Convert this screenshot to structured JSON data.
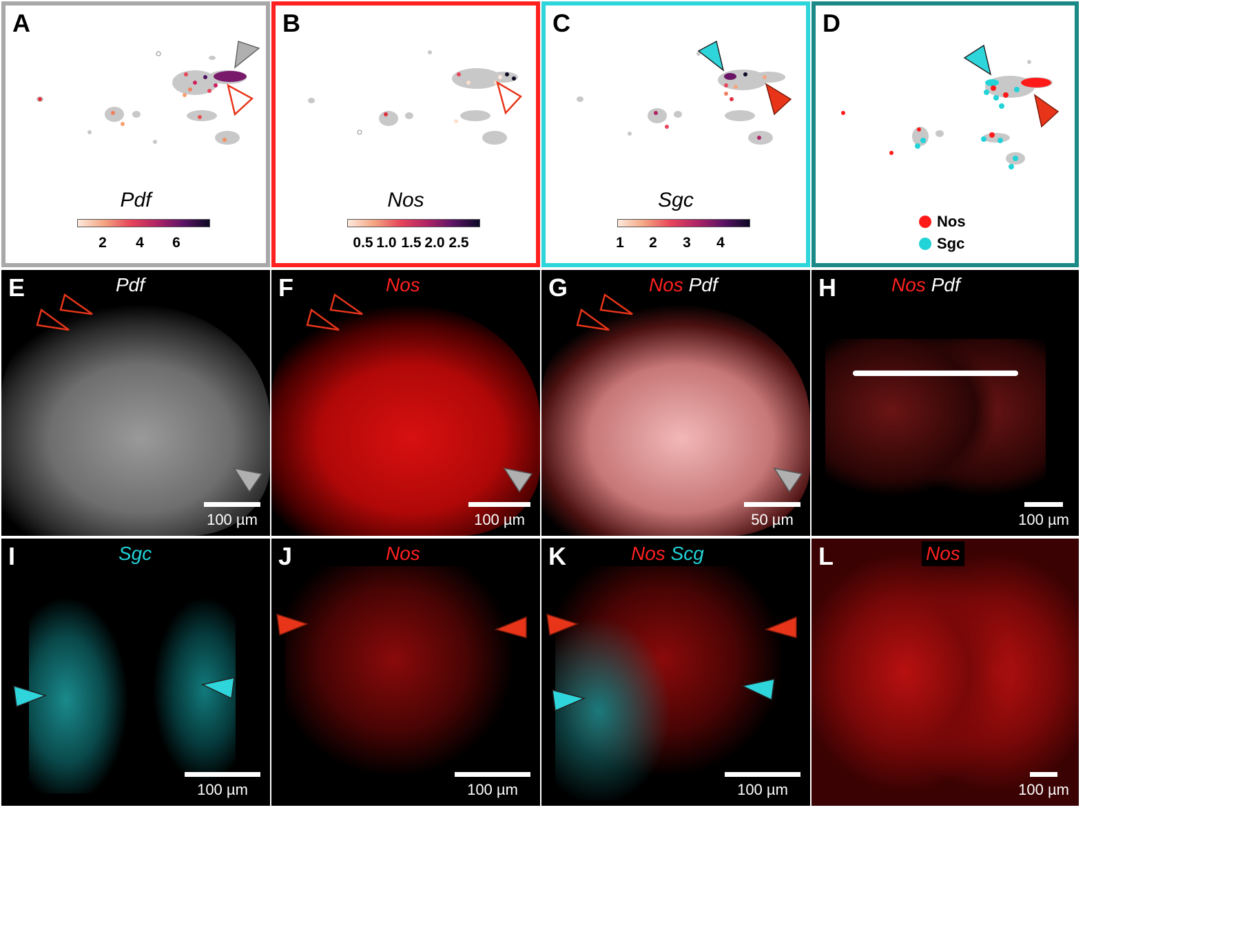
{
  "panels": {
    "A": {
      "label": "A",
      "gene": "Pdf",
      "ticks": [
        "2",
        "4",
        "6"
      ]
    },
    "B": {
      "label": "B",
      "gene": "Nos",
      "ticks": [
        "0.5",
        "1.0",
        "1.5",
        "2.0",
        "2.5"
      ]
    },
    "C": {
      "label": "C",
      "gene": "Sgc",
      "ticks": [
        "1",
        "2",
        "3",
        "4"
      ]
    },
    "D": {
      "label": "D",
      "legend": [
        "Nos",
        "Sgc"
      ]
    },
    "E": {
      "label": "E",
      "title": [
        "Pdf"
      ],
      "scale": "100 µm"
    },
    "F": {
      "label": "F",
      "title": [
        "Nos"
      ],
      "scale": "100 µm"
    },
    "G": {
      "label": "G",
      "title": [
        "Nos",
        "Pdf"
      ],
      "scale": "50 µm"
    },
    "H": {
      "label": "H",
      "title": [
        "Nos",
        "Pdf"
      ],
      "scale": "100 µm"
    },
    "I": {
      "label": "I",
      "title": [
        "Sgc"
      ],
      "scale": "100 µm"
    },
    "J": {
      "label": "J",
      "title": [
        "Nos"
      ],
      "scale": "100 µm"
    },
    "K": {
      "label": "K",
      "title": [
        "Nos",
        "Scg"
      ],
      "scale": "100 µm"
    },
    "L": {
      "label": "L",
      "title": [
        "Nos"
      ],
      "scale": "100 µm"
    }
  },
  "colors": {
    "border_A": "#a8a8a8",
    "border_B": "#ff2020",
    "border_C": "#2ed6dc",
    "border_D": "#1b8a87",
    "nos": "#ff1a1a",
    "sgc": "#22d3d8",
    "pdf": "#ffffff",
    "arrow_red": "#e8351a",
    "arrow_cyan": "#2ed6dc",
    "arrow_gray": "#b0b0b0"
  }
}
